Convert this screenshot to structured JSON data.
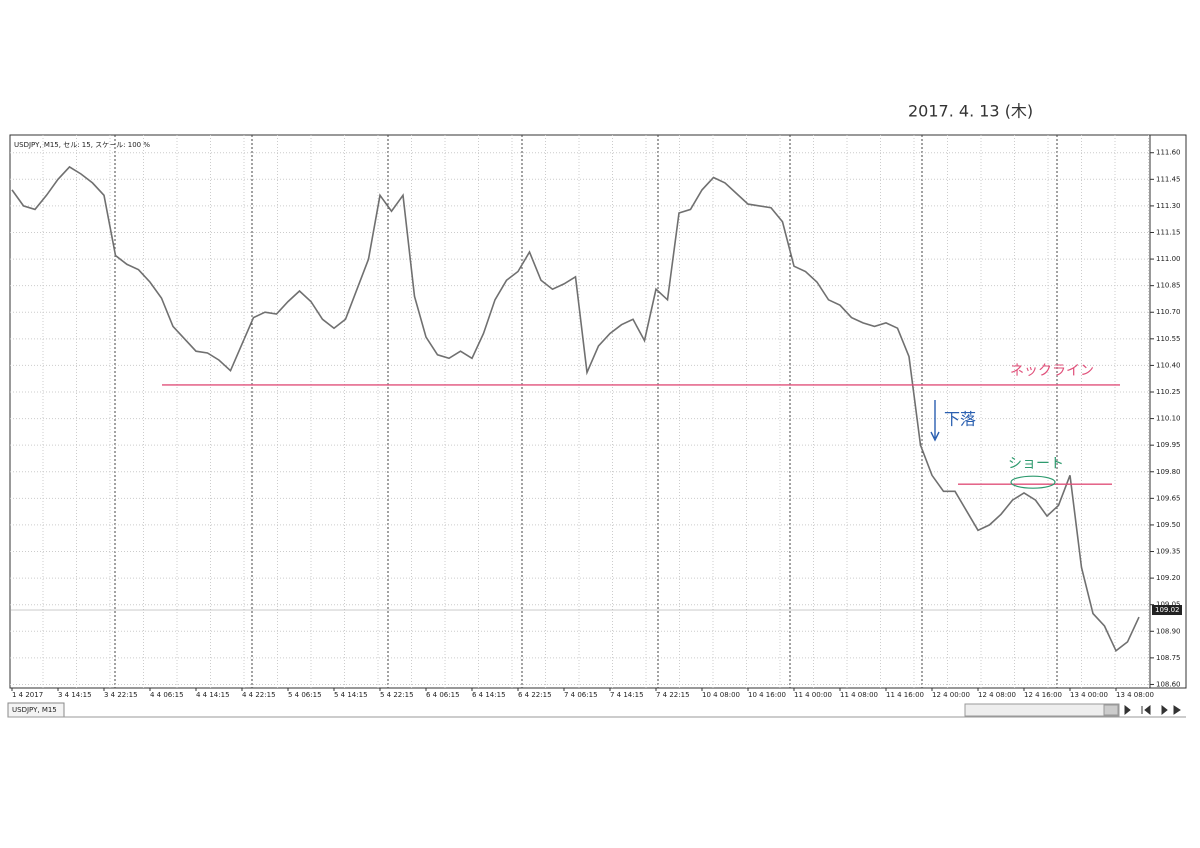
{
  "chart_data": {
    "type": "line",
    "info": "USDJPY, M15, セル: 15, スケール: 100 %",
    "tab_label": "USDJPY, M15",
    "note": "2017. 4. 13 (木)",
    "color": "#707070",
    "grid": true,
    "ylim": [
      108.58,
      111.7
    ],
    "yticks": [
      {
        "value": 108.6,
        "label": "108.60"
      },
      108.75,
      {
        "value": 108.9,
        "label": "108.90"
      },
      109.05,
      {
        "value": 109.2,
        "label": "109.20"
      },
      109.35,
      {
        "value": 109.5,
        "label": "109.50"
      },
      109.65,
      {
        "value": 109.8,
        "label": "109.80"
      },
      109.95,
      {
        "value": 110.1,
        "label": "110.10"
      },
      110.25,
      {
        "value": 110.4,
        "label": "110.40"
      },
      110.55,
      {
        "value": 110.7,
        "label": "110.70"
      },
      110.85,
      {
        "value": 111.0,
        "label": "111.00"
      },
      111.15,
      {
        "value": 111.3,
        "label": "111.30"
      },
      111.45,
      {
        "value": 111.6,
        "label": "111.60"
      }
    ],
    "categories": [
      "1 4 2017",
      null,
      null,
      null,
      "3 4 14:15",
      null,
      null,
      null,
      "3 4 22:15",
      null,
      null,
      null,
      "4 4 06:15",
      null,
      null,
      null,
      "4 4 14:15",
      null,
      null,
      null,
      "4 4 22:15",
      null,
      null,
      null,
      "5 4 06:15",
      null,
      null,
      null,
      "5 4 14:15",
      null,
      null,
      null,
      "5 4 22:15",
      null,
      null,
      null,
      "6 4 06:15",
      null,
      null,
      null,
      "6 4 14:15",
      null,
      null,
      null,
      "6 4 22:15",
      null,
      null,
      null,
      "7 4 06:15",
      null,
      null,
      null,
      "7 4 14:15",
      null,
      null,
      null,
      "7 4 22:15",
      null,
      null,
      null,
      "10 4 08:00",
      null,
      null,
      null,
      "10 4 16:00",
      null,
      null,
      null,
      "11 4 00:00",
      null,
      null,
      null,
      "11 4 08:00",
      null,
      null,
      null,
      "11 4 16:00",
      null,
      null,
      null,
      "12 4 00:00",
      null,
      null,
      null,
      "12 4 08:00",
      null,
      null,
      null,
      "12 4 16:00",
      null,
      null,
      null,
      "13 4 00:00",
      null,
      null,
      null,
      "13 4 08:00",
      null,
      null
    ],
    "values": [
      111.39,
      111.3,
      111.28,
      111.36,
      111.45,
      111.52,
      111.48,
      111.43,
      111.36,
      111.02,
      110.97,
      110.94,
      110.87,
      110.78,
      110.62,
      110.55,
      110.48,
      110.47,
      110.43,
      110.37,
      110.52,
      110.67,
      110.7,
      110.69,
      110.76,
      110.82,
      110.76,
      110.66,
      110.61,
      110.66,
      110.83,
      111.0,
      111.36,
      111.27,
      111.36,
      110.79,
      110.56,
      110.46,
      110.44,
      110.48,
      110.44,
      110.58,
      110.77,
      110.88,
      110.93,
      111.04,
      110.88,
      110.83,
      110.86,
      110.9,
      110.36,
      110.51,
      110.58,
      110.63,
      110.66,
      110.54,
      110.83,
      110.77,
      111.26,
      111.28,
      111.39,
      111.46,
      111.43,
      111.37,
      111.31,
      111.3,
      111.29,
      111.21,
      110.96,
      110.93,
      110.87,
      110.77,
      110.74,
      110.67,
      110.64,
      110.62,
      110.64,
      110.61,
      110.45,
      109.95,
      109.78,
      109.69,
      109.69,
      109.58,
      109.47,
      109.5,
      109.56,
      109.64,
      109.68,
      109.64,
      109.55,
      109.61,
      109.78,
      109.26,
      109.0,
      108.93,
      108.79,
      108.84,
      108.98
    ],
    "last_price": 109.02,
    "hlines": [
      {
        "name": "ネックライン",
        "value": 110.29,
        "color": "#e0507a",
        "label_color": "#e0507a"
      },
      {
        "name": "ショート",
        "value": 109.73,
        "color": "#e0507a",
        "label_color": "#2e9a6e"
      }
    ],
    "annotation": {
      "text": "下落",
      "color": "#2a5fb0"
    }
  }
}
